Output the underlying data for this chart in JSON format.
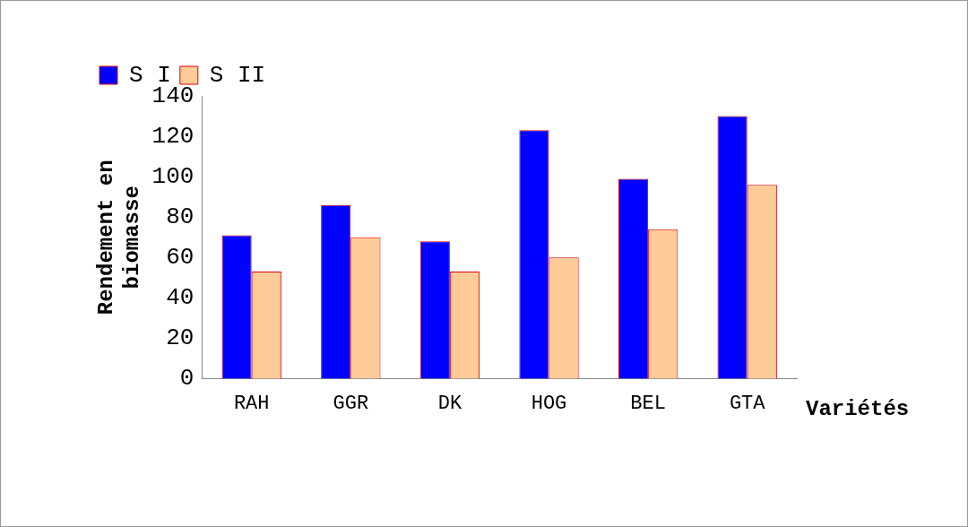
{
  "chart_data": {
    "type": "bar",
    "xlabel": "Variétés",
    "ylabel": "Rendement en biomasse",
    "categories": [
      "RAH",
      "GGR",
      "DK",
      "HOG",
      "BEL",
      "GTA"
    ],
    "series": [
      {
        "name": "S I",
        "color": "#0000ff",
        "values": [
          71,
          86,
          68,
          123,
          99,
          130
        ]
      },
      {
        "name": "S II",
        "color": "#ffcc99",
        "values": [
          53,
          70,
          53,
          60,
          74,
          96
        ]
      }
    ],
    "ylim": [
      0,
      140
    ],
    "yticks": [
      0,
      20,
      40,
      60,
      80,
      100,
      120,
      140
    ],
    "grid": false,
    "legend": "top left"
  }
}
